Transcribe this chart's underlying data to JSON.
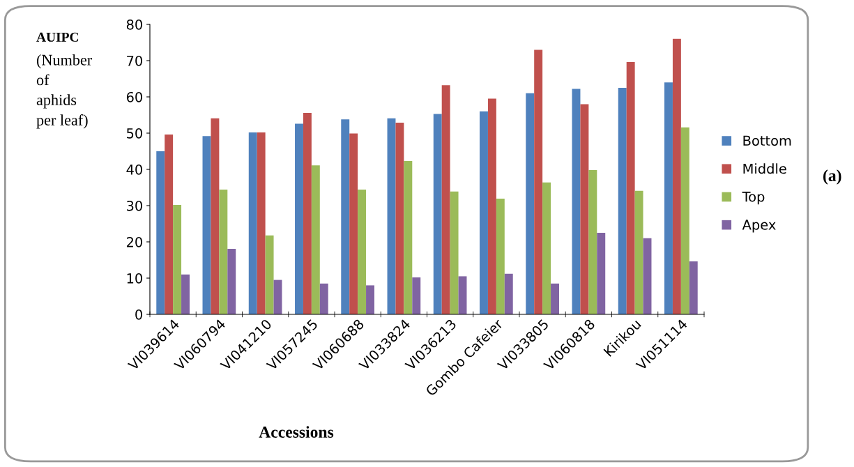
{
  "chart_data": {
    "type": "bar",
    "categories": [
      "VI039614",
      "VI060794",
      "VI041210",
      "VI057245",
      "VI060688",
      "VI033824",
      "VI036213",
      "Gombo Cafeier",
      "VI033805",
      "VI060818",
      "Kirikou",
      "VI051114"
    ],
    "series": [
      {
        "name": "Bottom",
        "color": "#4f81bd",
        "values": [
          45,
          49.2,
          50.2,
          52.6,
          53.8,
          54.1,
          55.3,
          56,
          61,
          62.2,
          62.5,
          64
        ]
      },
      {
        "name": "Middle",
        "color": "#c0504d",
        "values": [
          49.6,
          54.1,
          50.2,
          55.6,
          49.9,
          52.9,
          63.2,
          59.5,
          73,
          58,
          69.6,
          76
        ]
      },
      {
        "name": "Top",
        "color": "#9bbb59",
        "values": [
          30.2,
          34.4,
          21.8,
          41.1,
          34.4,
          42.3,
          33.9,
          31.9,
          36.4,
          39.8,
          34.1,
          51.6
        ]
      },
      {
        "name": "Apex",
        "color": "#8064a2",
        "values": [
          11,
          18.1,
          9.5,
          8.5,
          8,
          10.2,
          10.5,
          11.2,
          8.5,
          22.5,
          21,
          14.6
        ]
      }
    ],
    "ylabel": "AUIPC\n(Number\nof\naphids\nper leaf)",
    "xlabel": "Accessions",
    "annotations": [
      "(a)"
    ],
    "ylim": [
      0,
      80
    ],
    "yticks": [
      0,
      10,
      20,
      30,
      40,
      50,
      60,
      70,
      80
    ],
    "grid": false,
    "legend": "right"
  }
}
